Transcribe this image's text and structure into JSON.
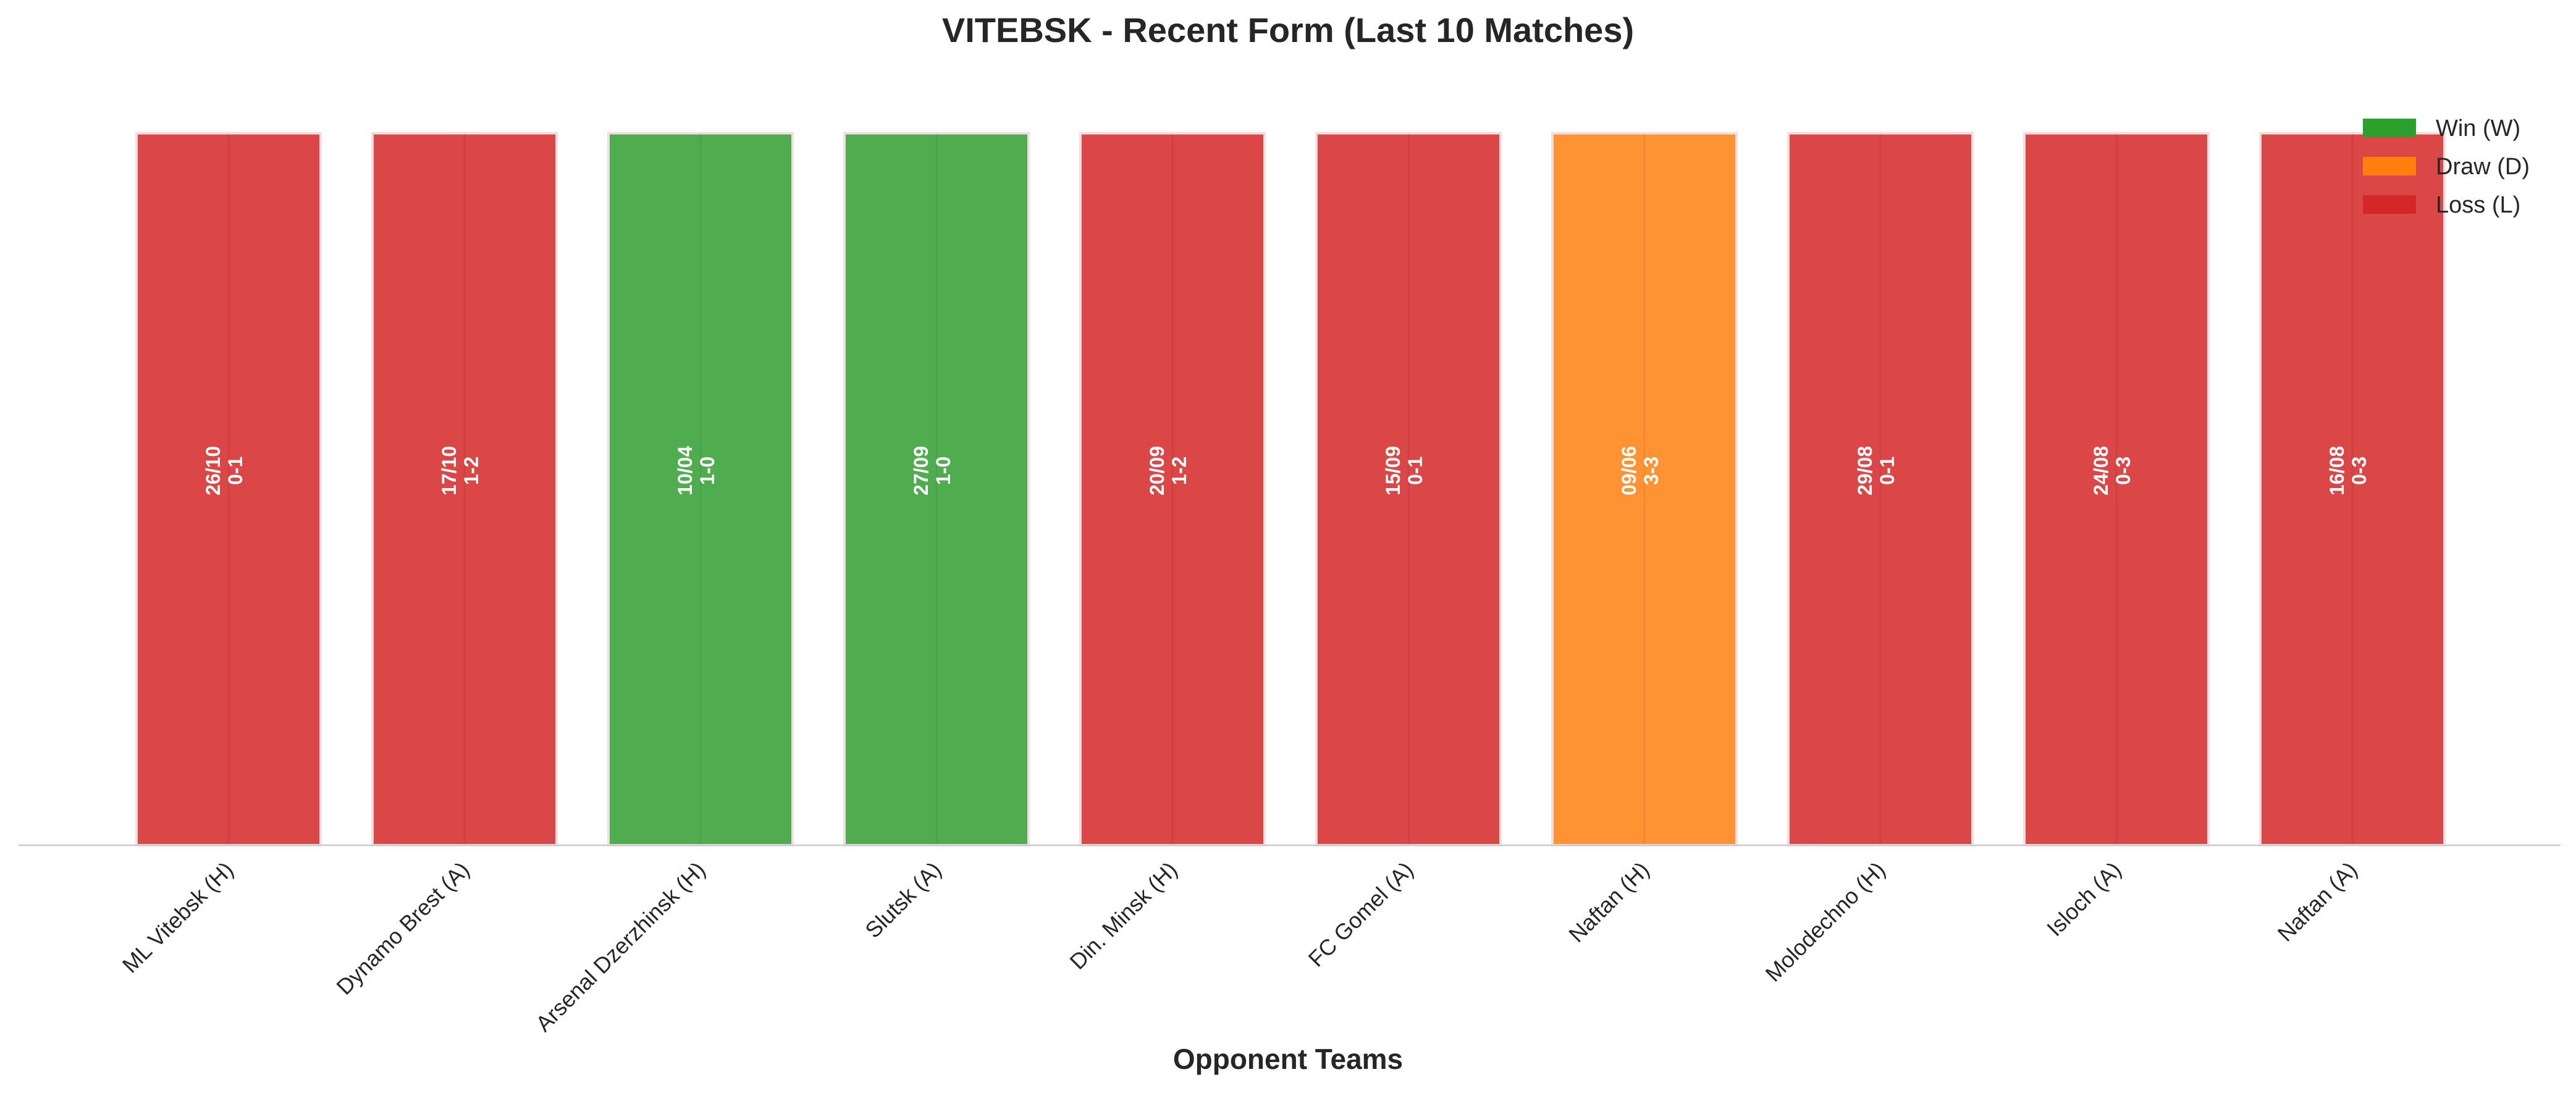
{
  "chart_data": {
    "type": "bar",
    "title": "VITEBSK - Recent Form (Last 10 Matches)",
    "xlabel": "Opponent Teams",
    "ylabel": "",
    "categories": [
      "ML Vitebsk (H)",
      "Dynamo Brest (A)",
      "Arsenal Dzerzhinsk (H)",
      "Slutsk (A)",
      "Din. Minsk (H)",
      "FC Gomel (A)",
      "Naftan (H)",
      "Molodechno (H)",
      "Isloch (A)",
      "Naftan (A)"
    ],
    "values": [
      1,
      1,
      1,
      1,
      1,
      1,
      1,
      1,
      1,
      1
    ],
    "results": [
      "L",
      "L",
      "W",
      "W",
      "L",
      "L",
      "D",
      "L",
      "L",
      "L"
    ],
    "dates": [
      "26/10",
      "17/10",
      "10/04",
      "27/09",
      "20/09",
      "15/09",
      "09/06",
      "29/08",
      "24/08",
      "16/08"
    ],
    "scores": [
      "0-1",
      "1-2",
      "1-0",
      "1-0",
      "1-2",
      "0-1",
      "3-3",
      "0-1",
      "0-3",
      "0-3"
    ],
    "ylim": [
      0,
      1.05
    ],
    "grid": false,
    "legend": {
      "placement": "top-right",
      "entries": [
        {
          "key": "W",
          "label": "Win (W)",
          "color": "#2ca02c"
        },
        {
          "key": "D",
          "label": "Draw (D)",
          "color": "#ff7f0e"
        },
        {
          "key": "L",
          "label": "Loss (L)",
          "color": "#d62728"
        }
      ]
    },
    "bar_colors": {
      "W": "#4fad4f",
      "D": "#ff9333",
      "L": "#db4747"
    }
  }
}
